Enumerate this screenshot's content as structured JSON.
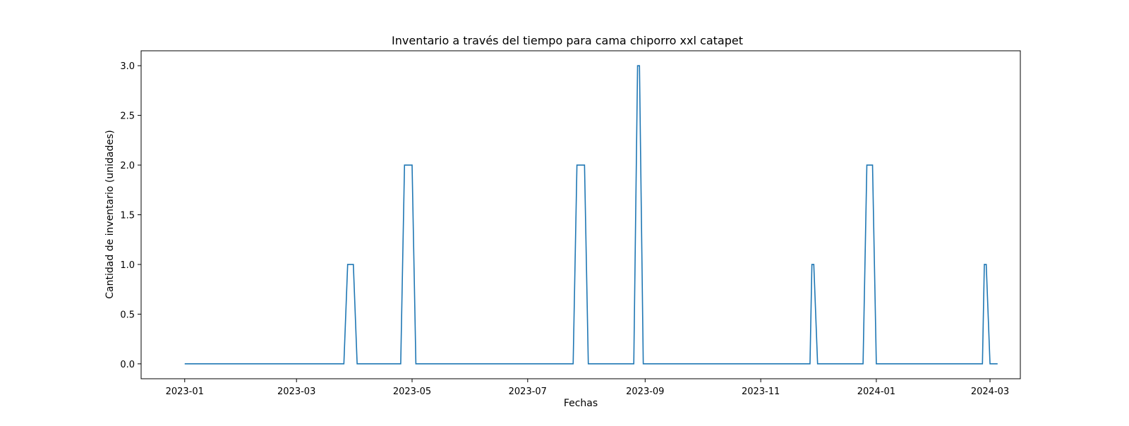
{
  "chart_data": {
    "type": "line",
    "title": "Inventario a través del tiempo para cama chiporro xxl catapet",
    "xlabel": "Fechas",
    "ylabel": "Cantidad de inventario (unidades)",
    "x_ticks": [
      "2023-01",
      "2023-03",
      "2023-05",
      "2023-07",
      "2023-09",
      "2023-11",
      "2024-01",
      "2024-03"
    ],
    "y_ticks": [
      "0.0",
      "0.5",
      "1.0",
      "1.5",
      "2.0",
      "2.5",
      "3.0"
    ],
    "xlim": [
      "2022-12-09",
      "2024-03-17"
    ],
    "ylim": [
      -0.15,
      3.15
    ],
    "grid": false,
    "line_color": "#1f77b4",
    "series": [
      {
        "x": [
          "2023-01-01",
          "2023-03-26",
          "2023-03-28",
          "2023-03-31",
          "2023-04-02",
          "2023-04-25",
          "2023-04-27",
          "2023-05-01",
          "2023-05-03",
          "2023-07-25",
          "2023-07-27",
          "2023-07-31",
          "2023-08-02",
          "2023-08-26",
          "2023-08-28",
          "2023-08-29",
          "2023-08-31",
          "2023-11-27",
          "2023-11-28",
          "2023-11-29",
          "2023-12-01",
          "2023-12-25",
          "2023-12-27",
          "2023-12-30",
          "2024-01-01",
          "2024-02-26",
          "2024-02-27",
          "2024-02-28",
          "2024-03-01",
          "2024-03-05"
        ],
        "y": [
          0,
          0,
          1,
          1,
          0,
          0,
          2,
          2,
          0,
          0,
          2,
          2,
          0,
          0,
          3,
          3,
          0,
          0,
          1,
          1,
          0,
          0,
          2,
          2,
          0,
          0,
          1,
          1,
          0,
          0
        ]
      }
    ]
  }
}
